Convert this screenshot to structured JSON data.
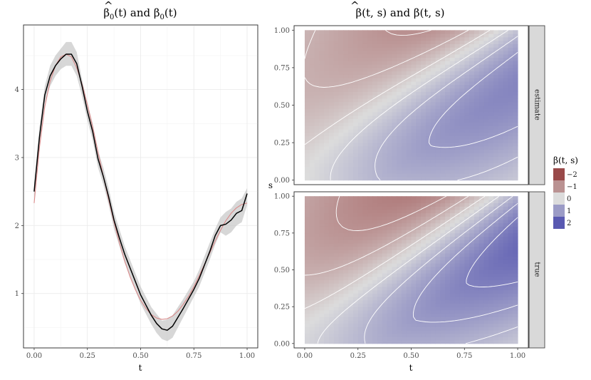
{
  "chart_data": [
    {
      "type": "line",
      "title_main": "β",
      "title_hat": "^",
      "title_sub": "0",
      "title_rest": "(t)  and  β",
      "title_sub2": "0",
      "title_end": "(t)",
      "xlabel": "t",
      "ylabel": "",
      "xlim": [
        -0.05,
        1.05
      ],
      "ylim": [
        0.2,
        4.95
      ],
      "xticks": [
        "0.00",
        "0.25",
        "0.50",
        "0.75",
        "1.00"
      ],
      "xtick_values": [
        0,
        0.25,
        0.5,
        0.75,
        1
      ],
      "yticks": [
        "1",
        "2",
        "3",
        "4"
      ],
      "ytick_values": [
        1,
        2,
        3,
        4
      ],
      "series": [
        {
          "name": "band",
          "style": "grey ribbon",
          "x": [
            0,
            0.025,
            0.05,
            0.075,
            0.1,
            0.125,
            0.15,
            0.175,
            0.2,
            0.225,
            0.25,
            0.275,
            0.3,
            0.325,
            0.35,
            0.375,
            0.4,
            0.425,
            0.45,
            0.475,
            0.5,
            0.525,
            0.55,
            0.575,
            0.6,
            0.625,
            0.65,
            0.675,
            0.7,
            0.725,
            0.75,
            0.775,
            0.8,
            0.825,
            0.85,
            0.875,
            0.9,
            0.925,
            0.95,
            0.975,
            1.0
          ],
          "lower": [
            2.4,
            3.2,
            3.8,
            4.05,
            4.2,
            4.3,
            4.35,
            4.35,
            4.2,
            3.9,
            3.55,
            3.25,
            2.85,
            2.6,
            2.3,
            1.95,
            1.7,
            1.45,
            1.25,
            1.05,
            0.85,
            0.7,
            0.55,
            0.42,
            0.33,
            0.3,
            0.35,
            0.5,
            0.65,
            0.8,
            0.95,
            1.1,
            1.3,
            1.5,
            1.72,
            1.9,
            1.85,
            1.9,
            2.0,
            2.05,
            2.3
          ],
          "upper": [
            2.6,
            3.45,
            4.05,
            4.35,
            4.5,
            4.6,
            4.7,
            4.7,
            4.55,
            4.15,
            3.8,
            3.5,
            3.1,
            2.85,
            2.55,
            2.2,
            1.95,
            1.7,
            1.5,
            1.3,
            1.1,
            0.95,
            0.8,
            0.7,
            0.6,
            0.62,
            0.68,
            0.8,
            0.92,
            1.05,
            1.18,
            1.35,
            1.55,
            1.75,
            1.95,
            2.12,
            2.2,
            2.25,
            2.35,
            2.4,
            2.55
          ]
        },
        {
          "name": "true",
          "style": "pink line",
          "color": "#d98a8a",
          "x": [
            0,
            0.025,
            0.05,
            0.075,
            0.1,
            0.125,
            0.15,
            0.175,
            0.2,
            0.225,
            0.25,
            0.275,
            0.3,
            0.325,
            0.35,
            0.375,
            0.4,
            0.425,
            0.45,
            0.475,
            0.5,
            0.525,
            0.55,
            0.575,
            0.6,
            0.625,
            0.65,
            0.675,
            0.7,
            0.725,
            0.75,
            0.775,
            0.8,
            0.825,
            0.85,
            0.875,
            0.9,
            0.925,
            0.95,
            0.975,
            1.0
          ],
          "y": [
            2.33,
            3.15,
            3.75,
            4.12,
            4.35,
            4.48,
            4.52,
            4.48,
            4.32,
            4.08,
            3.78,
            3.45,
            3.08,
            2.72,
            2.38,
            2.05,
            1.75,
            1.48,
            1.25,
            1.06,
            0.9,
            0.78,
            0.69,
            0.64,
            0.62,
            0.63,
            0.67,
            0.74,
            0.84,
            0.96,
            1.1,
            1.26,
            1.43,
            1.6,
            1.77,
            1.93,
            2.07,
            2.18,
            2.26,
            2.31,
            2.33
          ]
        },
        {
          "name": "estimate",
          "style": "black line",
          "color": "#000000",
          "x": [
            0,
            0.025,
            0.05,
            0.075,
            0.1,
            0.125,
            0.15,
            0.175,
            0.2,
            0.225,
            0.25,
            0.275,
            0.3,
            0.325,
            0.35,
            0.375,
            0.4,
            0.425,
            0.45,
            0.475,
            0.5,
            0.525,
            0.55,
            0.575,
            0.6,
            0.625,
            0.65,
            0.675,
            0.7,
            0.725,
            0.75,
            0.775,
            0.8,
            0.825,
            0.85,
            0.875,
            0.9,
            0.925,
            0.95,
            0.975,
            1.0
          ],
          "y": [
            2.5,
            3.3,
            3.92,
            4.2,
            4.35,
            4.45,
            4.52,
            4.52,
            4.38,
            4.05,
            3.68,
            3.38,
            2.98,
            2.72,
            2.42,
            2.08,
            1.82,
            1.58,
            1.38,
            1.18,
            0.98,
            0.83,
            0.68,
            0.56,
            0.48,
            0.46,
            0.52,
            0.65,
            0.78,
            0.92,
            1.06,
            1.22,
            1.42,
            1.62,
            1.85,
            2.0,
            2.02,
            2.08,
            2.18,
            2.22,
            2.47
          ]
        }
      ]
    },
    {
      "type": "heatmap",
      "title_main": "β",
      "title_hat": "^",
      "title_rest": "(t, s)  and  β(t, s)",
      "xlabel": "t",
      "ylabel": "s",
      "xlim": [
        -0.05,
        1.05
      ],
      "ylim": [
        -0.03,
        1.03
      ],
      "xticks": [
        "0.00",
        "0.25",
        "0.50",
        "0.75",
        "1.00"
      ],
      "xtick_values": [
        0,
        0.25,
        0.5,
        0.75,
        1
      ],
      "yticks": [
        "0.00",
        "0.25",
        "0.50",
        "0.75",
        "1.00"
      ],
      "ytick_values": [
        0,
        0.25,
        0.5,
        0.75,
        1
      ],
      "facets": [
        "estimate",
        "true"
      ],
      "color_scale": {
        "low": "#8b2b2b",
        "mid": "#dcdcdc",
        "high": "#3f3fa8",
        "limits": [
          -2.4,
          2.4
        ]
      },
      "legend": {
        "title": "β(t, s)",
        "labels": [
          "−2",
          "−1",
          "0",
          "1",
          "2"
        ],
        "values": [
          -2,
          -1,
          0,
          1,
          2
        ],
        "position": "right"
      },
      "contour_levels": [
        -2.2,
        -1.8,
        -1.4,
        -1,
        -0.6,
        -0.2,
        0.2,
        0.6,
        1,
        1.4,
        1.8,
        2.2
      ]
    }
  ]
}
